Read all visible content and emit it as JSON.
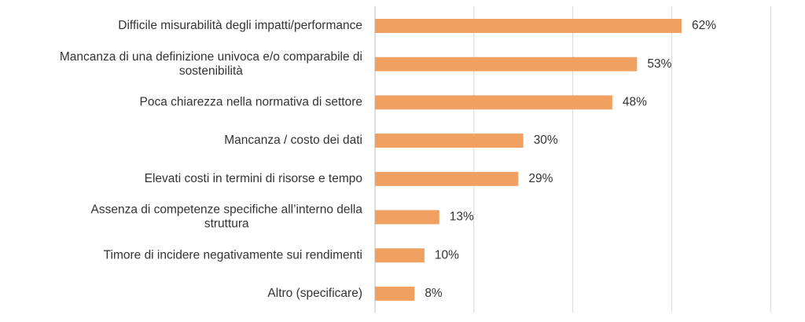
{
  "chart_data": {
    "type": "bar",
    "orientation": "horizontal",
    "categories": [
      [
        "Difficile misurabilità degli impatti/performance"
      ],
      [
        "Mancanza di una definizione univoca e/o comparabile di",
        "sostenibilità"
      ],
      [
        "Poca chiarezza nella normativa di settore"
      ],
      [
        "Mancanza / costo dei dati"
      ],
      [
        "Elevati costi in termini di risorse e tempo"
      ],
      [
        "Assenza di competenze specifiche all’interno della",
        "struttura"
      ],
      [
        "Timore di incidere negativamente sui rendimenti"
      ],
      [
        "Altro (specificare)"
      ]
    ],
    "values": [
      62,
      53,
      48,
      30,
      29,
      13,
      10,
      8
    ],
    "value_labels": [
      "62%",
      "53%",
      "48%",
      "30%",
      "29%",
      "13%",
      "10%",
      "8%"
    ],
    "title": "",
    "xlabel": "",
    "ylabel": "",
    "xlim": [
      0,
      80
    ],
    "grid": "vertical",
    "legend": "none",
    "bar_color": "#F0A060",
    "grid_color": "#D9D9D9"
  }
}
